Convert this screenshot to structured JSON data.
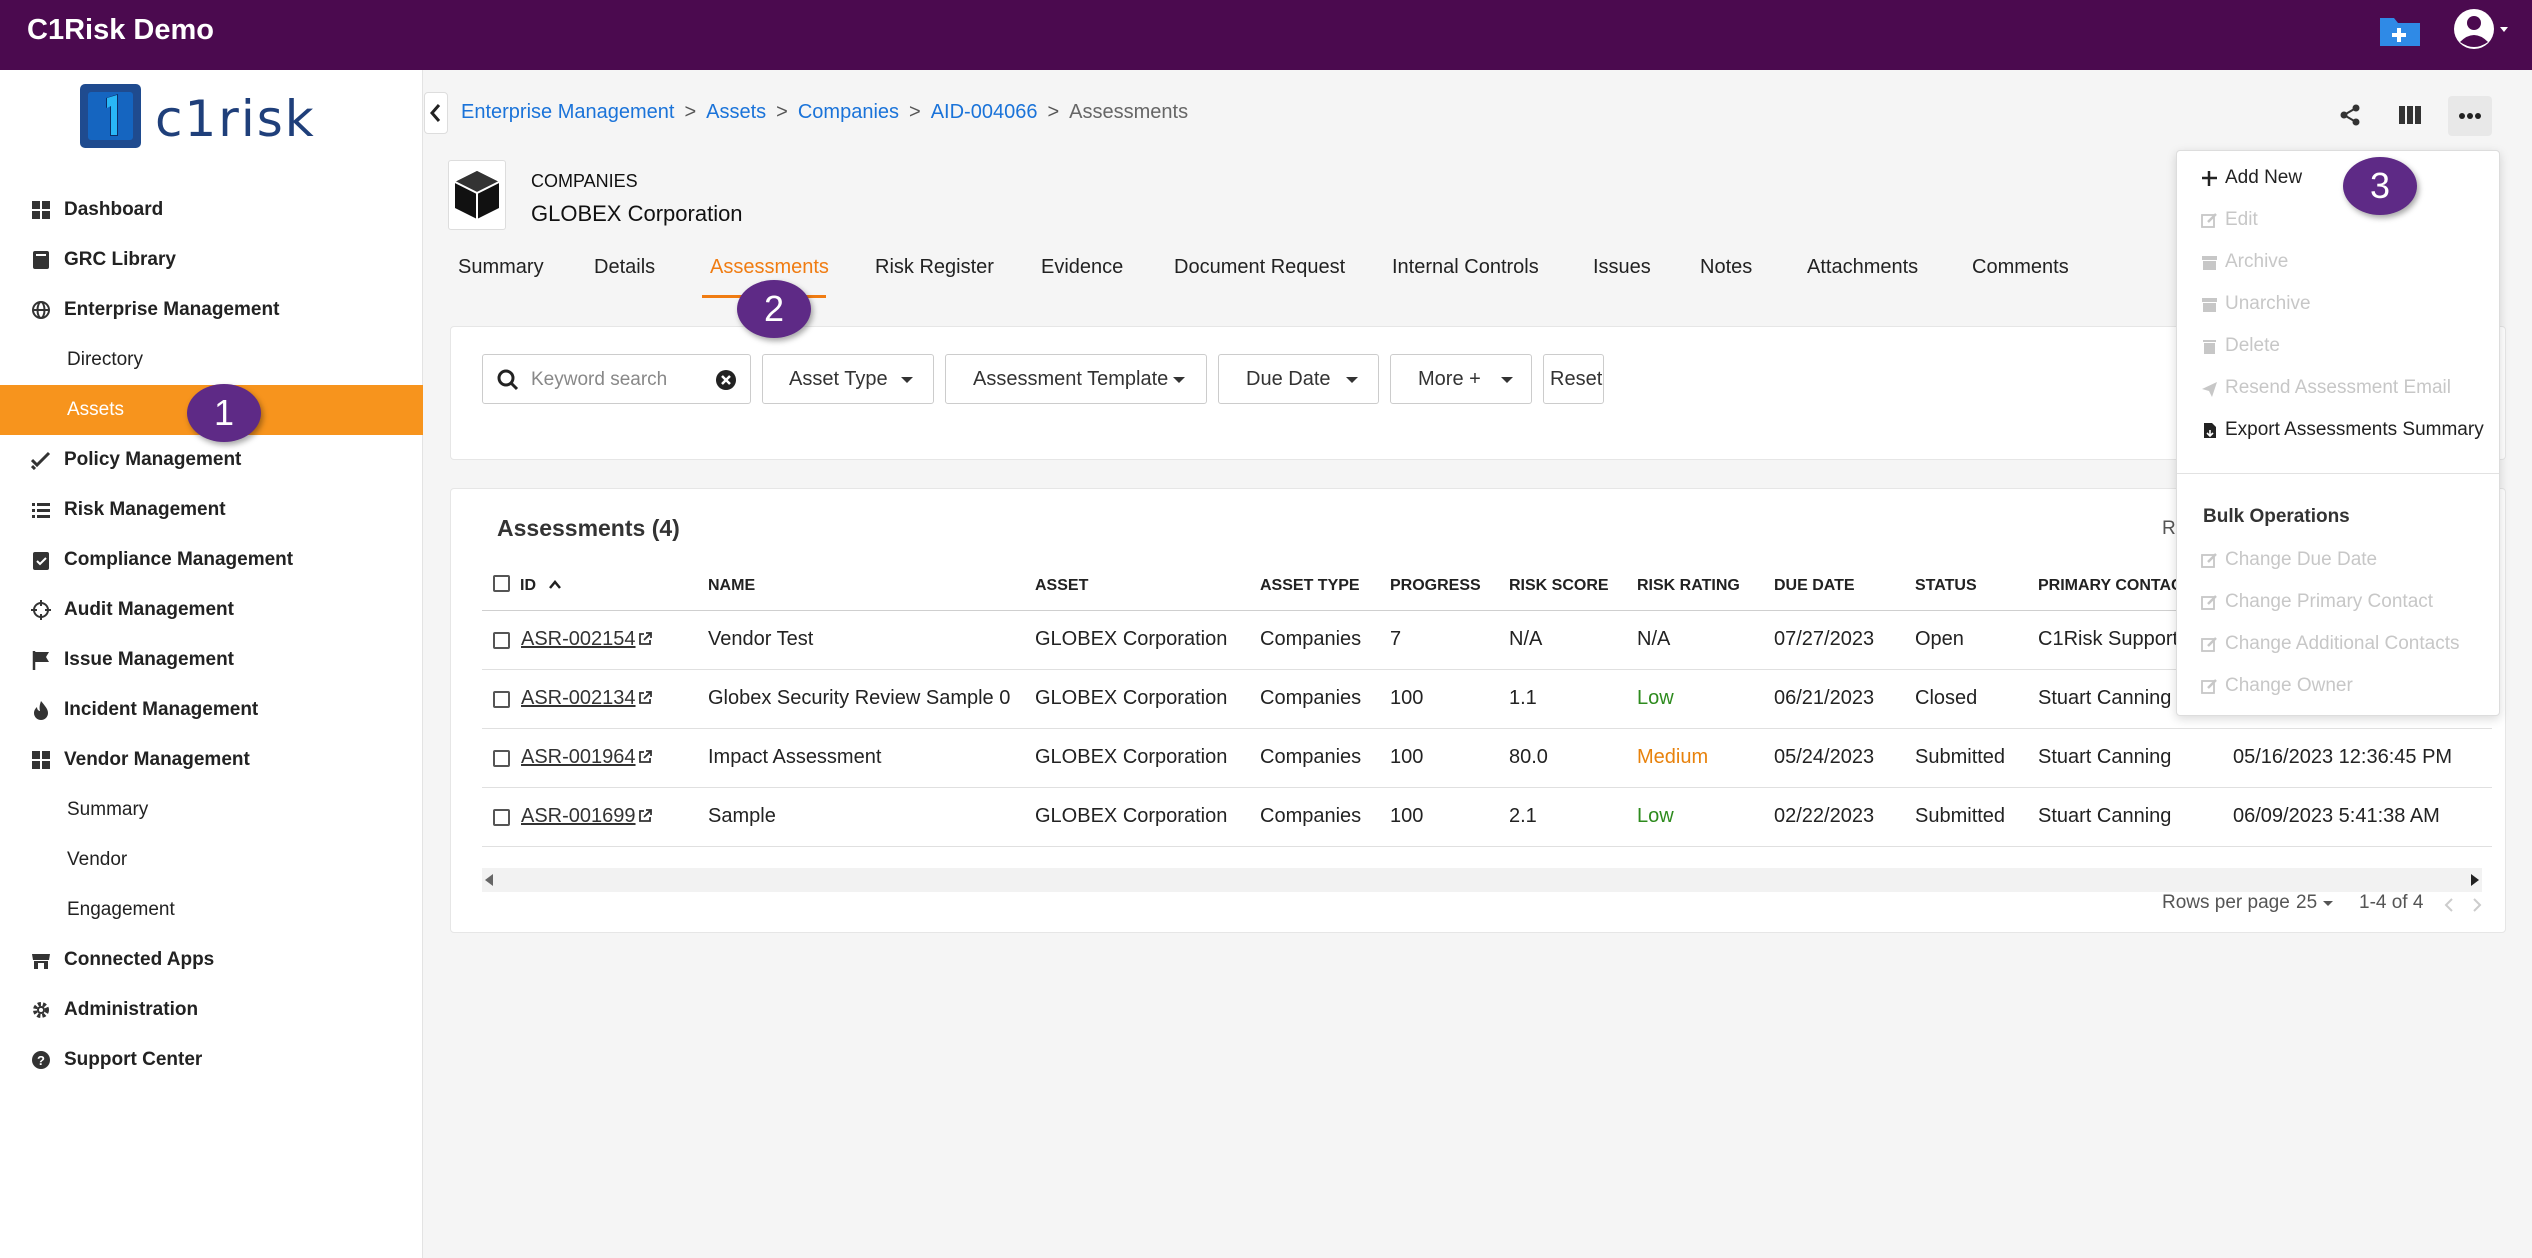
{
  "app": {
    "title": "C1Risk Demo"
  },
  "logo": {
    "text": "c1risk"
  },
  "sidebar": {
    "items": [
      {
        "label": "Dashboard",
        "icon": "dashboard-icon"
      },
      {
        "label": "GRC Library",
        "icon": "book-icon"
      },
      {
        "label": "Enterprise Management",
        "icon": "globe-icon"
      },
      {
        "label": "Directory",
        "icon": ""
      },
      {
        "label": "Assets",
        "icon": ""
      },
      {
        "label": "Policy Management",
        "icon": "double-check-icon"
      },
      {
        "label": "Risk Management",
        "icon": "list-icon"
      },
      {
        "label": "Compliance Management",
        "icon": "clipboard-check-icon"
      },
      {
        "label": "Audit Management",
        "icon": "crosshair-icon"
      },
      {
        "label": "Issue Management",
        "icon": "flag-icon"
      },
      {
        "label": "Incident Management",
        "icon": "fire-icon"
      },
      {
        "label": "Vendor Management",
        "icon": "grid-icon"
      },
      {
        "label": "Summary",
        "icon": ""
      },
      {
        "label": "Vendor",
        "icon": ""
      },
      {
        "label": "Engagement",
        "icon": ""
      },
      {
        "label": "Connected Apps",
        "icon": "store-icon"
      },
      {
        "label": "Administration",
        "icon": "gear-icon"
      },
      {
        "label": "Support Center",
        "icon": "help-icon"
      }
    ]
  },
  "breadcrumb": {
    "items": [
      "Enterprise Management",
      "Assets",
      "Companies",
      "AID-004066"
    ],
    "current": "Assessments",
    "separator": ">"
  },
  "entity": {
    "type": "COMPANIES",
    "name": "GLOBEX Corporation"
  },
  "tabs": [
    "Summary",
    "Details",
    "Assessments",
    "Risk Register",
    "Evidence",
    "Document Request",
    "Internal Controls",
    "Issues",
    "Notes",
    "Attachments",
    "Comments"
  ],
  "filters": {
    "search_placeholder": "Keyword search",
    "asset_type": "Asset Type",
    "assessment_template": "Assessment Template",
    "due_date": "Due Date",
    "more": "More +",
    "reset": "Reset"
  },
  "table": {
    "title": "Assessments (4)",
    "clipped_right_text": "R",
    "columns": [
      "ID",
      "NAME",
      "ASSET",
      "ASSET TYPE",
      "PROGRESS",
      "RISK SCORE",
      "RISK RATING",
      "DUE DATE",
      "STATUS",
      "PRIMARY CONTAC"
    ],
    "rows": [
      {
        "id": "ASR-002154",
        "name": "Vendor Test",
        "asset": "GLOBEX Corporation",
        "asset_type": "Companies",
        "progress": "7",
        "risk_score": "N/A",
        "risk_rating": "N/A",
        "due_date": "07/27/2023",
        "status": "Open",
        "contact": "C1Risk Support",
        "extra": ""
      },
      {
        "id": "ASR-002134",
        "name": "Globex Security Review Sample 0",
        "asset": "GLOBEX Corporation",
        "asset_type": "Companies",
        "progress": "100",
        "risk_score": "1.1",
        "risk_rating": "Low",
        "due_date": "06/21/2023",
        "status": "Closed",
        "contact": "Stuart Canning",
        "extra": ""
      },
      {
        "id": "ASR-001964",
        "name": "Impact Assessment",
        "asset": "GLOBEX Corporation",
        "asset_type": "Companies",
        "progress": "100",
        "risk_score": "80.0",
        "risk_rating": "Medium",
        "due_date": "05/24/2023",
        "status": "Submitted",
        "contact": "Stuart Canning",
        "extra": "05/16/2023 12:36:45 PM"
      },
      {
        "id": "ASR-001699",
        "name": "Sample",
        "asset": "GLOBEX Corporation",
        "asset_type": "Companies",
        "progress": "100",
        "risk_score": "2.1",
        "risk_rating": "Low",
        "due_date": "02/22/2023",
        "status": "Submitted",
        "contact": "Stuart Canning",
        "extra": "06/09/2023 5:41:38 AM"
      }
    ],
    "rating_colors": {
      "Low": "#2e8b1e",
      "Medium": "#e8820c",
      "N/A": "#222222"
    }
  },
  "pagination": {
    "rows_per_page_label": "Rows per page",
    "rows_per_page": "25",
    "range": "1-4 of 4"
  },
  "menu": {
    "items": [
      {
        "label": "Add New",
        "enabled": true,
        "icon": "plus-icon"
      },
      {
        "label": "Edit",
        "enabled": false,
        "icon": "edit-icon"
      },
      {
        "label": "Archive",
        "enabled": false,
        "icon": "archive-icon"
      },
      {
        "label": "Unarchive",
        "enabled": false,
        "icon": "archive-icon"
      },
      {
        "label": "Delete",
        "enabled": false,
        "icon": "trash-icon"
      },
      {
        "label": "Resend Assessment Email",
        "enabled": false,
        "icon": "send-icon"
      },
      {
        "label": "Export Assessments Summary",
        "enabled": true,
        "icon": "file-export-icon"
      }
    ],
    "bulk_heading": "Bulk Operations",
    "bulk_items": [
      "Change Due Date",
      "Change Primary Contact",
      "Change Additional Contacts",
      "Change Owner"
    ]
  },
  "badges": [
    "1",
    "2",
    "3"
  ],
  "colors": {
    "topbar": "#4b0a4f",
    "active_nav": "#f7941d",
    "link": "#1a73d9",
    "active_tab": "#f07c12",
    "badge": "#5e2a86"
  }
}
